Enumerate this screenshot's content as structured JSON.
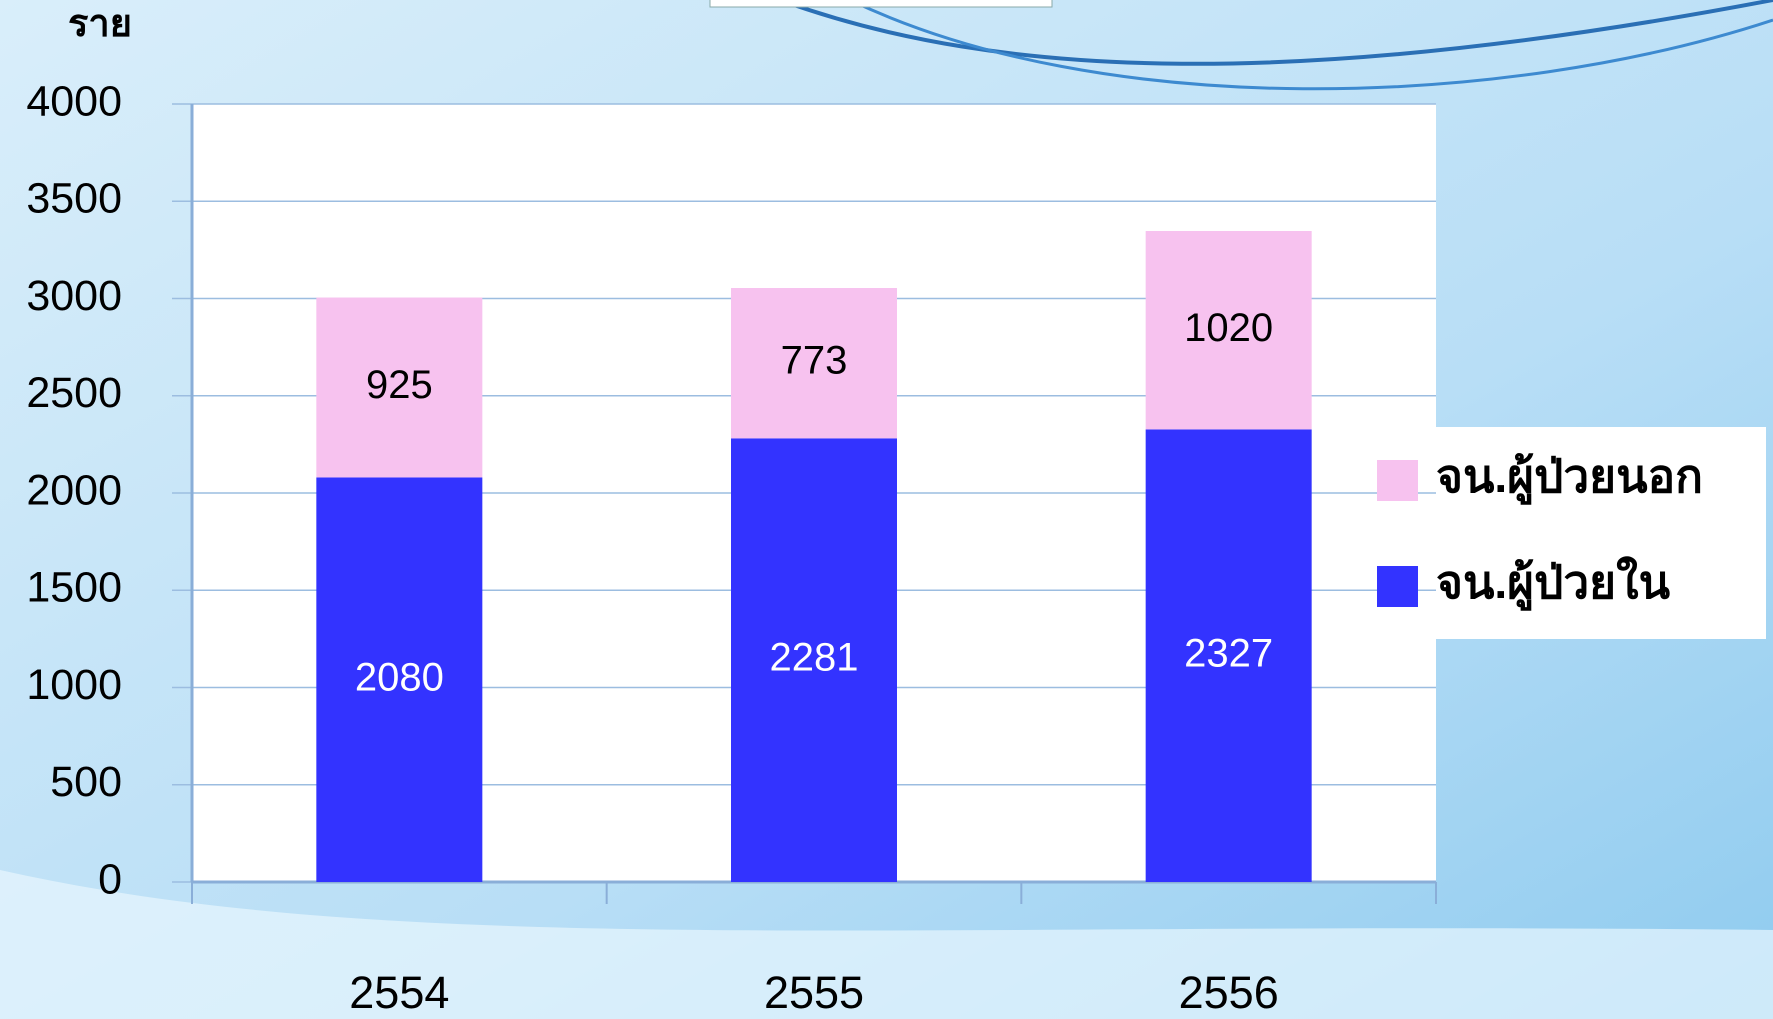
{
  "chart_data": {
    "type": "stacked-bar",
    "y_axis_label": "ราย",
    "categories": [
      "2554",
      "2555",
      "2556"
    ],
    "series": [
      {
        "name": "จน.ผู้ป่วยใน",
        "color": "#3333ff",
        "values": [
          2080,
          2281,
          2327
        ]
      },
      {
        "name": "จน.ผู้ป่วยนอก",
        "color": "#f7c2ef",
        "values": [
          925,
          773,
          1020
        ]
      }
    ],
    "ylim": [
      0,
      4000
    ],
    "yticks": [
      0,
      500,
      1000,
      1500,
      2000,
      2500,
      3000,
      3500,
      4000
    ],
    "grid": true,
    "legend": "right"
  }
}
